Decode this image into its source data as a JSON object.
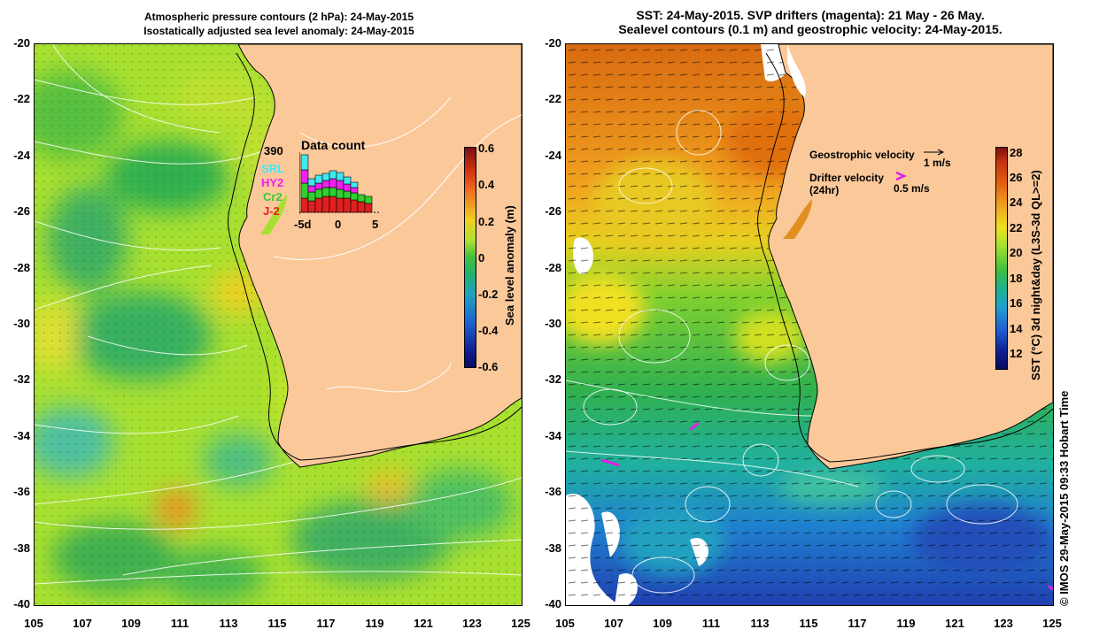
{
  "left_map": {
    "title_line1": "Atmospheric pressure contours (2 hPa): 24-May-2015",
    "title_line2": "Isostatically adjusted sea level anomaly: 24-May-2015",
    "colorbar_title": "Sea level anomaly (m)",
    "colorbar_ticks": [
      "0.6",
      "0.4",
      "0.2",
      "0",
      "-0.2",
      "-0.4",
      "-0.6"
    ],
    "colorbar_range": [
      -0.6,
      0.6
    ],
    "data_count": {
      "title": "Data count",
      "max_label": "390",
      "legend": [
        "SRL",
        "HY2",
        "Cr2",
        "J-2"
      ],
      "legend_colors": [
        "#40e8f0",
        "#f020f0",
        "#30d030",
        "#e02020"
      ],
      "x_ticks": [
        "-5d",
        "0",
        "5"
      ]
    }
  },
  "right_map": {
    "title_line1": "SST: 24-May-2015. SVP drifters (magenta): 21 May - 26 May.",
    "title_line2": "Sealevel contours (0.1 m) and geostrophic velocity: 24-May-2015.",
    "colorbar_title": "SST (°C) 3d night&day (L3S-3d QL>=2)",
    "colorbar_ticks": [
      "28",
      "26",
      "24",
      "22",
      "20",
      "18",
      "16",
      "14",
      "12"
    ],
    "colorbar_range": [
      11,
      28.5
    ],
    "legend": {
      "geo_label": "Geostrophic velocity",
      "geo_scale": "1 m/s",
      "drifter_label_line1": "Drifter velocity",
      "drifter_label_line2": "(24hr)",
      "drifter_scale": "0.5 m/s"
    }
  },
  "axes": {
    "lat_ticks": [
      "-20",
      "-22",
      "-24",
      "-26",
      "-28",
      "-30",
      "-32",
      "-34",
      "-36",
      "-38",
      "-40"
    ],
    "lon_ticks": [
      "105",
      "107",
      "109",
      "111",
      "113",
      "115",
      "117",
      "119",
      "121",
      "123",
      "125"
    ],
    "lon_range": [
      105,
      125
    ],
    "lat_range": [
      -40,
      -20
    ]
  },
  "credit": "© IMOS 29-May-2015 09:33 Hobart Time",
  "colors": {
    "land": "#fbc89a",
    "coast": "#000000",
    "drifter": "#e020e0"
  }
}
